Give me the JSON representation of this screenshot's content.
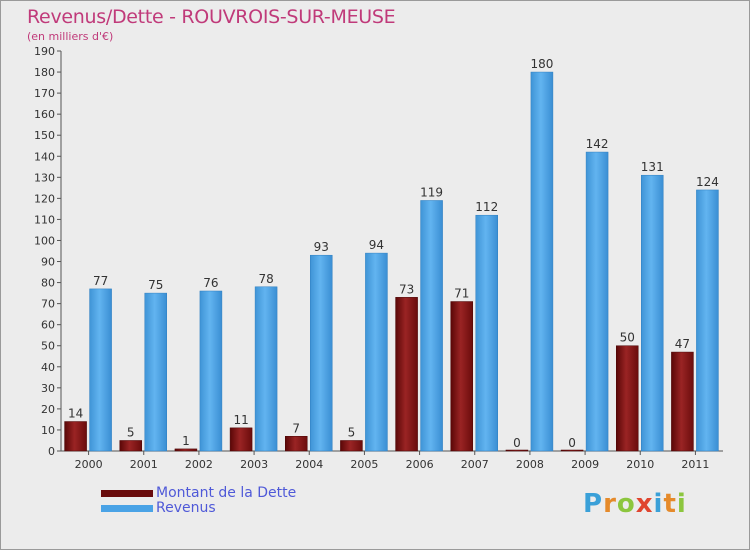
{
  "header": {
    "title": "Revenus/Dette - ROUVROIS-SUR-MEUSE",
    "subtitle": "(en milliers d'€)"
  },
  "chart_data": {
    "type": "bar",
    "title": "Revenus/Dette - ROUVROIS-SUR-MEUSE",
    "ylabel": "(en milliers d'€)",
    "xlabel": "",
    "categories": [
      "2000",
      "2001",
      "2002",
      "2003",
      "2004",
      "2005",
      "2006",
      "2007",
      "2008",
      "2009",
      "2010",
      "2011"
    ],
    "series": [
      {
        "name": "Montant de la Dette",
        "color": "#7a1010",
        "values": [
          14,
          5,
          1,
          11,
          7,
          5,
          73,
          71,
          0,
          0,
          50,
          47
        ]
      },
      {
        "name": "Revenus",
        "color": "#4aa3e6",
        "values": [
          77,
          75,
          76,
          78,
          93,
          94,
          119,
          112,
          180,
          142,
          131,
          124
        ]
      }
    ],
    "ylim": [
      0,
      190
    ],
    "ytick_step": 10,
    "grid": false,
    "legend": "bottom-left"
  },
  "legend": {
    "items": [
      {
        "label": "Montant de la Dette",
        "color": "#6a0c0c"
      },
      {
        "label": "Revenus",
        "color": "#4aa3e6"
      }
    ]
  },
  "brand": {
    "letters": [
      "P",
      "r",
      "o",
      "x",
      "i",
      "t",
      "i"
    ]
  }
}
